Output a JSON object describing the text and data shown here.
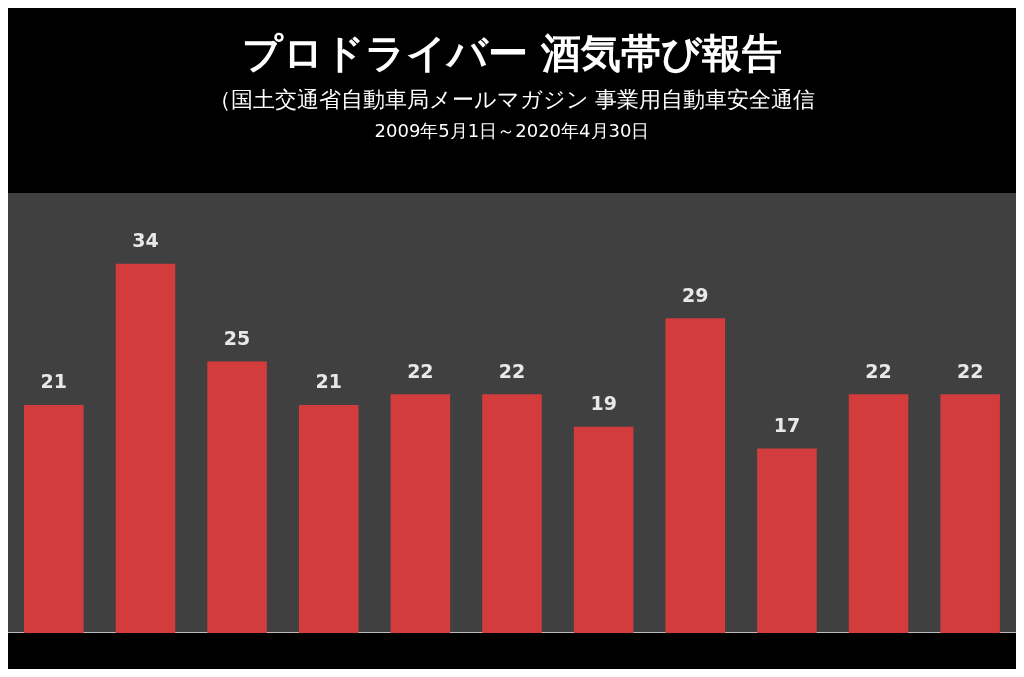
{
  "chart_data": {
    "type": "bar",
    "title": "プロドライバー  酒気帯び報告",
    "subtitle": "（国土交通省自動車局メールマガジン 事業用自動車安全通信\n2009年5月1日～2020年4月30日",
    "categories": [
      null,
      null,
      null,
      null,
      null,
      null,
      null,
      null,
      null,
      null,
      null
    ],
    "values": [
      21,
      34,
      25,
      21,
      22,
      22,
      19,
      29,
      17,
      22,
      22
    ],
    "color": "#d33c3c",
    "data_labels": true,
    "grid": false,
    "legend": false
  }
}
